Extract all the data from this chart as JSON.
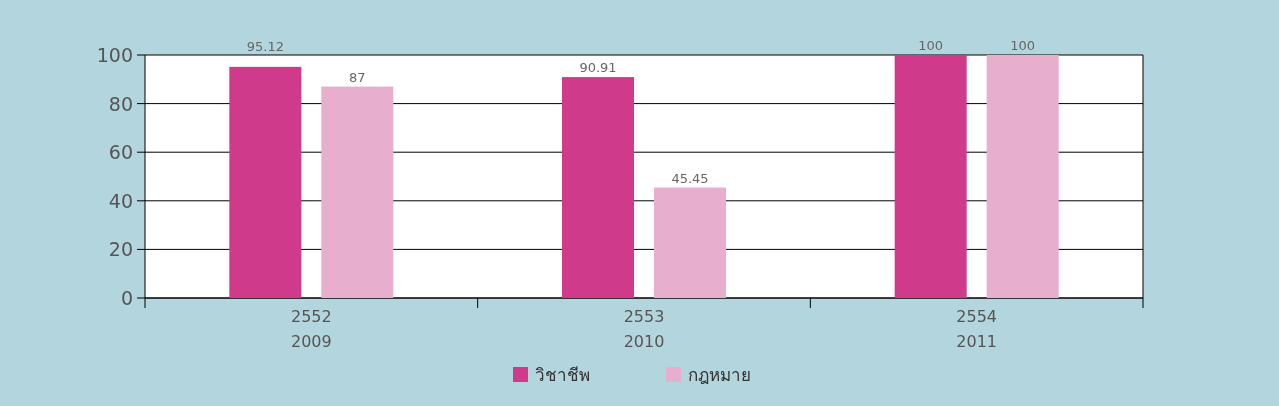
{
  "chart_data": {
    "type": "bar",
    "categories": [
      "2552 2009",
      "2553 2010",
      "2554 2011"
    ],
    "series": [
      {
        "name": "วิชาชีพ",
        "color": "#cf3a8a",
        "values": [
          95.12,
          90.91,
          100
        ]
      },
      {
        "name": "กฎหมาย",
        "color": "#e8aecd",
        "values": [
          87,
          45.45,
          100
        ]
      }
    ],
    "ylim": [
      0,
      100
    ],
    "yticks": [
      0,
      20,
      40,
      60,
      80,
      100
    ],
    "grid": "y",
    "data_labels": true,
    "legend": "bottom"
  }
}
